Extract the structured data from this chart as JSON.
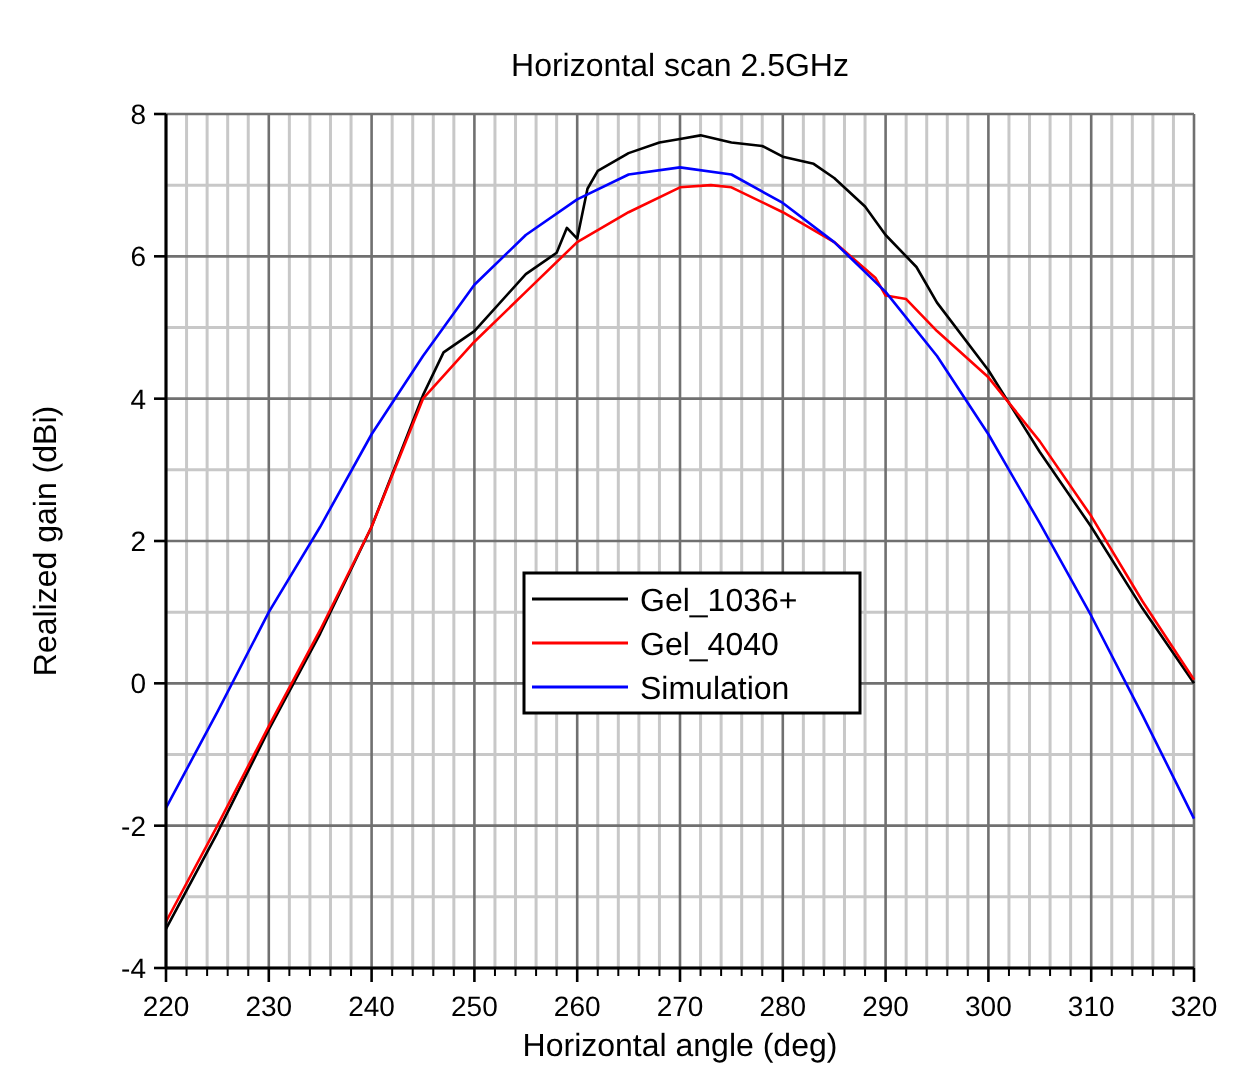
{
  "chart_data": {
    "type": "line",
    "title": "Horizontal scan 2.5GHz",
    "xlabel": "Horizontal angle (deg)",
    "ylabel": "Realized gain (dBi)",
    "xlim": [
      220,
      320
    ],
    "xticks": [
      220,
      230,
      240,
      250,
      260,
      270,
      280,
      290,
      300,
      310,
      320
    ],
    "ylim": [
      -4,
      8
    ],
    "yticks": [
      -4,
      -2,
      0,
      2,
      4,
      6,
      8
    ],
    "grid": true,
    "legend": "center",
    "marker": "none",
    "line_style": "solid",
    "series": [
      {
        "name": "Gel_1036+",
        "color": "#000000",
        "x": [
          220,
          225,
          230,
          235,
          240,
          245,
          247,
          250,
          255,
          258,
          259,
          260,
          261,
          262,
          265,
          268,
          270,
          272,
          275,
          278,
          280,
          283,
          285,
          288,
          290,
          293,
          295,
          300,
          305,
          310,
          315,
          320
        ],
        "values": [
          -3.45,
          -2.1,
          -0.65,
          0.7,
          2.2,
          4.05,
          4.65,
          4.95,
          5.75,
          6.05,
          6.4,
          6.25,
          6.95,
          7.2,
          7.45,
          7.6,
          7.65,
          7.7,
          7.6,
          7.55,
          7.4,
          7.3,
          7.1,
          6.7,
          6.3,
          5.85,
          5.35,
          4.4,
          3.25,
          2.2,
          1.05,
          0
        ]
      },
      {
        "name": "Gel_4040",
        "color": "#ff0000",
        "x": [
          220,
          225,
          230,
          235,
          240,
          245,
          250,
          255,
          260,
          265,
          270,
          273,
          275,
          280,
          285,
          289,
          290,
          292,
          295,
          300,
          305,
          310,
          315,
          320
        ],
        "values": [
          -3.35,
          -2.0,
          -0.6,
          0.75,
          2.2,
          4.0,
          4.8,
          5.5,
          6.2,
          6.62,
          6.97,
          7.0,
          6.97,
          6.62,
          6.2,
          5.7,
          5.45,
          5.4,
          4.95,
          4.3,
          3.4,
          2.35,
          1.15,
          0.05
        ]
      },
      {
        "name": "Simulation",
        "color": "#0000ff",
        "x": [
          220,
          225,
          230,
          235,
          240,
          245,
          250,
          255,
          260,
          265,
          270,
          275,
          280,
          285,
          290,
          295,
          300,
          305,
          310,
          315,
          320
        ],
        "values": [
          -1.75,
          -0.4,
          1.0,
          2.2,
          3.5,
          4.6,
          5.6,
          6.3,
          6.8,
          7.15,
          7.25,
          7.15,
          6.75,
          6.2,
          5.5,
          4.6,
          3.5,
          2.25,
          0.95,
          -0.45,
          -1.9
        ]
      }
    ]
  }
}
